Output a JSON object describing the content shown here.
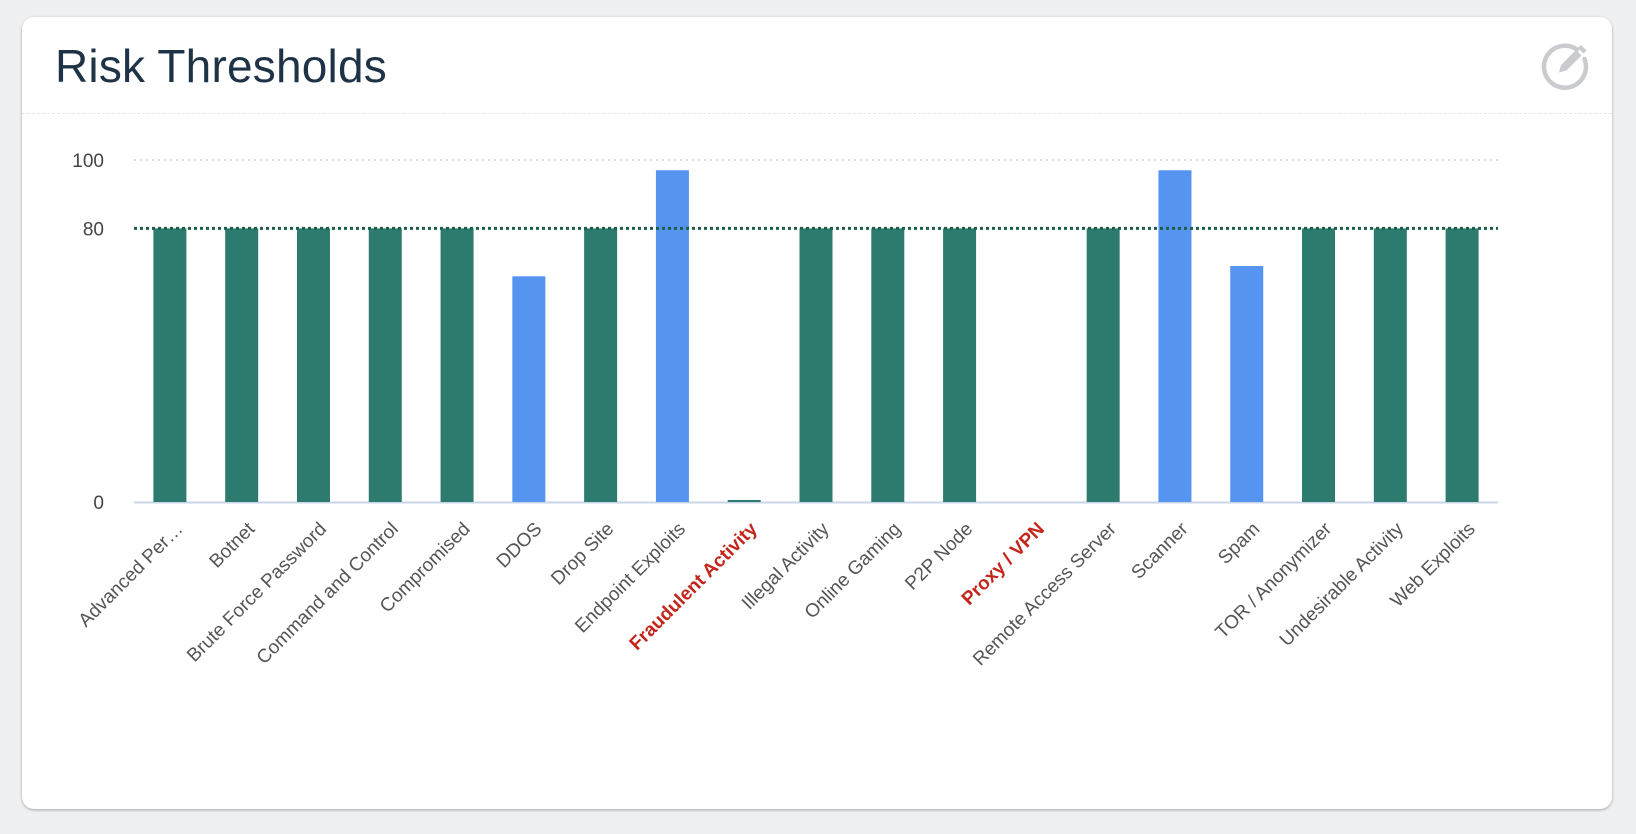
{
  "card": {
    "title": "Risk Thresholds",
    "edit_icon": "edit-pencil-circle-icon"
  },
  "colors": {
    "bar_default": "#2d7b6e",
    "bar_highlight": "#5594f0",
    "threshold_line": "#1d5e4a",
    "label_default": "#555555",
    "label_alert": "#c3251b"
  },
  "chart_data": {
    "type": "bar",
    "title": "",
    "xlabel": "",
    "ylabel": "",
    "ylim": [
      0,
      100
    ],
    "yticks": [
      0,
      80,
      100
    ],
    "grid": "dotted horizontal at 100",
    "threshold": 80,
    "categories": [
      "Advanced Per…",
      "Botnet",
      "Brute Force Password",
      "Command and Control",
      "Compromised",
      "DDOS",
      "Drop Site",
      "Endpoint Exploits",
      "Fraudulent Activity",
      "Illegal Activity",
      "Online Gaming",
      "P2P Node",
      "Proxy / VPN",
      "Remote Access Server",
      "Scanner",
      "Spam",
      "TOR / Anonymizer",
      "Undesirable Activity",
      "Web Exploits"
    ],
    "values": [
      80,
      80,
      80,
      80,
      80,
      66,
      80,
      97,
      0.5,
      80,
      80,
      80,
      0,
      80,
      97,
      69,
      80,
      80,
      80
    ],
    "highlighted": [
      false,
      false,
      false,
      false,
      false,
      true,
      false,
      true,
      false,
      false,
      false,
      false,
      false,
      false,
      true,
      true,
      false,
      false,
      false
    ],
    "alert_labels": [
      false,
      false,
      false,
      false,
      false,
      false,
      false,
      false,
      true,
      false,
      false,
      false,
      true,
      false,
      false,
      false,
      false,
      false,
      false
    ]
  }
}
